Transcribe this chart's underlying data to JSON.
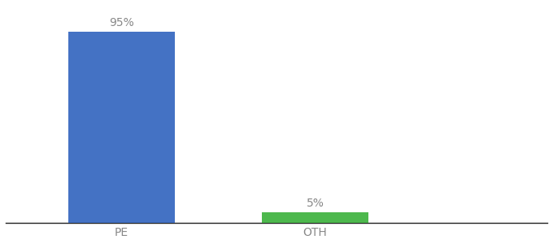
{
  "categories": [
    "PE",
    "OTH"
  ],
  "values": [
    95,
    5
  ],
  "bar_colors": [
    "#4472c4",
    "#4db84d"
  ],
  "label_texts": [
    "95%",
    "5%"
  ],
  "background_color": "#ffffff",
  "text_color": "#888888",
  "label_fontsize": 10,
  "tick_fontsize": 10,
  "ylim": [
    0,
    108
  ],
  "xlim": [
    -0.6,
    2.2
  ],
  "x_positions": [
    0,
    1
  ],
  "bar_width": 0.55
}
